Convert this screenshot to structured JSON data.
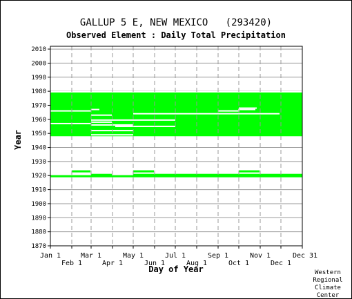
{
  "chart_data": {
    "type": "heatmap",
    "title": "GALLUP 5 E, NEW MEXICO   (293420)",
    "subtitle": "Observed Element : Daily Total Precipitation",
    "xlabel": "Day of Year",
    "ylabel": "Year",
    "credit": [
      "Western",
      "Regional",
      "Climate",
      "Center"
    ],
    "xlim": [
      1,
      366
    ],
    "ylim": [
      1870,
      2012
    ],
    "x_ticks_row1": [
      {
        "label": "Jan 1",
        "day": 1
      },
      {
        "label": "Mar 1",
        "day": 60
      },
      {
        "label": "May 1",
        "day": 121
      },
      {
        "label": "Jul 1",
        "day": 182
      },
      {
        "label": "Sep 1",
        "day": 244
      },
      {
        "label": "Nov 1",
        "day": 305
      },
      {
        "label": "Dec 31",
        "day": 366
      }
    ],
    "x_ticks_row2": [
      {
        "label": "Feb 1",
        "day": 32
      },
      {
        "label": "Apr 1",
        "day": 91
      },
      {
        "label": "Jun 1",
        "day": 152
      },
      {
        "label": "Aug 1",
        "day": 213
      },
      {
        "label": "Oct 1",
        "day": 274
      },
      {
        "label": "Dec 1",
        "day": 335
      }
    ],
    "y_ticks": [
      1870,
      1880,
      1890,
      1900,
      1910,
      1920,
      1930,
      1940,
      1950,
      1960,
      1970,
      1980,
      1990,
      2000,
      2010
    ],
    "data_color": "#00ff00",
    "gap_color": "#ffffff",
    "grid": true,
    "data_blocks": [
      {
        "year_start": 1948,
        "year_end": 1979.5,
        "day_start": 1,
        "day_end": 366
      }
    ],
    "data_years": [
      {
        "year": 1919.5,
        "day_start": 1,
        "day_end": 366
      }
    ],
    "data_segments": [
      {
        "year": 1923,
        "day_start": 32,
        "day_end": 59
      },
      {
        "year": 1923,
        "day_start": 121,
        "day_end": 151
      },
      {
        "year": 1923,
        "day_start": 274,
        "day_end": 304
      },
      {
        "year": 1920.5,
        "day_start": 121,
        "day_end": 366
      },
      {
        "year": 1920.5,
        "day_start": 60,
        "day_end": 90
      }
    ],
    "missing_segments": [
      {
        "year": 1966,
        "day_start": 1,
        "day_end": 60
      },
      {
        "year": 1964,
        "day_start": 121,
        "day_end": 333
      },
      {
        "year": 1963,
        "day_start": 60,
        "day_end": 90
      },
      {
        "year": 1959.5,
        "day_start": 60,
        "day_end": 182
      },
      {
        "year": 1958,
        "day_start": 60,
        "day_end": 90
      },
      {
        "year": 1957,
        "day_start": 1,
        "day_end": 60
      },
      {
        "year": 1956,
        "day_start": 60,
        "day_end": 121
      },
      {
        "year": 1955,
        "day_start": 95,
        "day_end": 182
      },
      {
        "year": 1952,
        "day_start": 60,
        "day_end": 121
      },
      {
        "year": 1949,
        "day_start": 60,
        "day_end": 121
      },
      {
        "year": 1979.6,
        "day_start": 1,
        "day_end": 366
      },
      {
        "year": 1967,
        "day_start": 60,
        "day_end": 72
      },
      {
        "year": 1967,
        "day_start": 273,
        "day_end": 298
      },
      {
        "year": 1968,
        "day_start": 274,
        "day_end": 300
      },
      {
        "year": 1966,
        "day_start": 244,
        "day_end": 275
      }
    ]
  }
}
